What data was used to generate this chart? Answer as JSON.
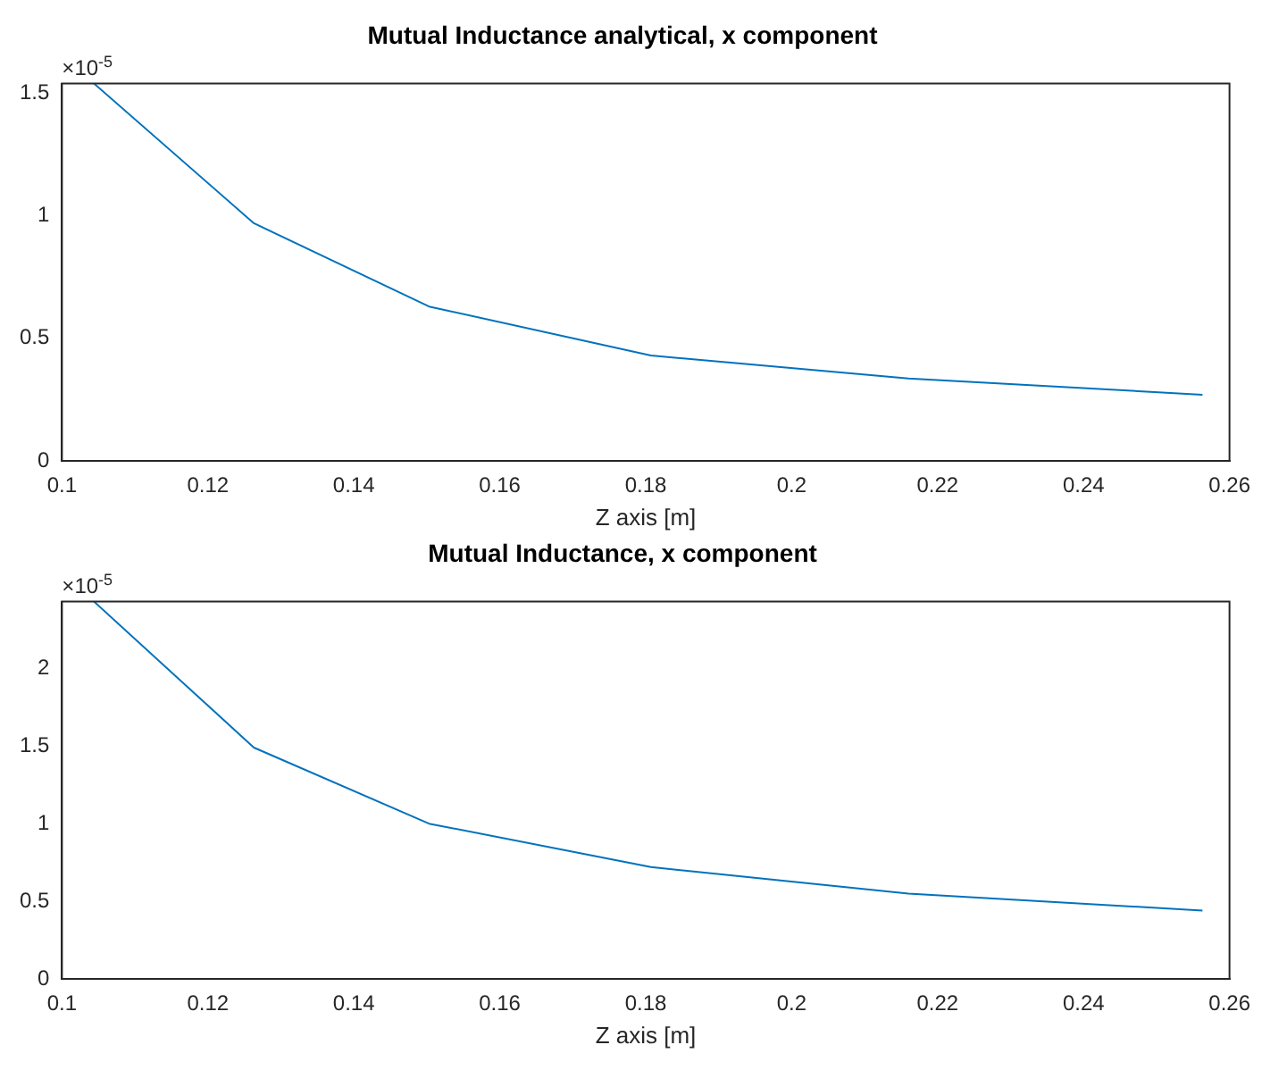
{
  "chart_data": [
    {
      "type": "line",
      "title": "Mutual Inductance analytical, x component",
      "xlabel": "Z axis [m]",
      "x": [
        0.1044,
        0.1263,
        0.1503,
        0.1807,
        0.216,
        0.2563
      ],
      "series": [
        {
          "color": "#0072bd",
          "values": [
            1.54,
            0.97,
            0.63,
            0.43,
            0.336,
            0.27
          ]
        }
      ],
      "xlim": [
        0.1,
        0.26
      ],
      "xticks": [
        0.1,
        0.12,
        0.14,
        0.16,
        0.18,
        0.2,
        0.22,
        0.24,
        0.26
      ],
      "ylim": [
        0,
        1.54
      ],
      "yticks": [
        0,
        0.5,
        1,
        1.5
      ],
      "annotations": [
        "×10$^{-5}$"
      ],
      "marker": "none",
      "line_style": "solid"
    },
    {
      "type": "line",
      "title": "Mutual Inductance, x component",
      "xlabel": "Z axis [m]",
      "x": [
        0.1044,
        0.1263,
        0.1503,
        0.1807,
        0.216,
        0.2563
      ],
      "series": [
        {
          "color": "#0072bd",
          "values": [
            2.43,
            1.49,
            1.0,
            0.72,
            0.55,
            0.44
          ]
        }
      ],
      "xlim": [
        0.1,
        0.26
      ],
      "xticks": [
        0.1,
        0.12,
        0.14,
        0.16,
        0.18,
        0.2,
        0.22,
        0.24,
        0.26
      ],
      "ylim": [
        0,
        2.43
      ],
      "yticks": [
        0,
        0.5,
        1,
        1.5,
        2
      ],
      "annotations": [
        "×10$^{-5}$"
      ],
      "marker": "none",
      "line_style": "solid"
    }
  ]
}
